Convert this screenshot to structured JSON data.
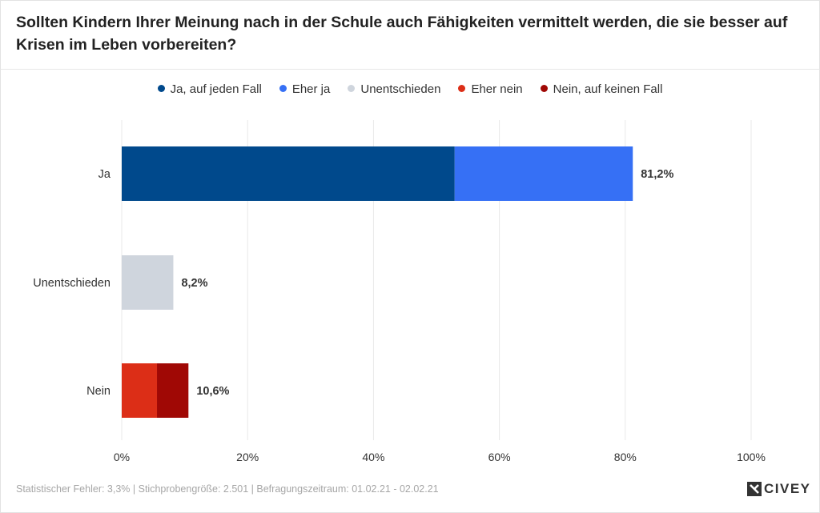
{
  "title": "Sollten Kindern Ihrer Meinung nach in der Schule auch Fähigkeiten vermittelt werden, die sie besser auf Krisen im Leben vorbereiten?",
  "footer": "Statistischer Fehler: 3,3% | Stichprobengröße: 2.501 | Befragungszeitraum: 01.02.21 - 02.02.21",
  "logo": {
    "text": "CIVEY",
    "icon": "civey-logo-icon"
  },
  "colors": {
    "ja_auf_jeden_fall": "#00498c",
    "eher_ja": "#3670f5",
    "unentschieden": "#cfd5dd",
    "eher_nein": "#dc2e17",
    "nein_auf_keinen_fall": "#a00805"
  },
  "chart_data": {
    "type": "bar",
    "orientation": "horizontal",
    "stacked": true,
    "categories": [
      "Ja",
      "Unentschieden",
      "Nein"
    ],
    "series": [
      {
        "name": "Ja, auf jeden Fall",
        "color": "#00498c",
        "values": [
          52.9,
          0,
          0
        ]
      },
      {
        "name": "Eher ja",
        "color": "#3670f5",
        "values": [
          28.3,
          0,
          0
        ]
      },
      {
        "name": "Unentschieden",
        "color": "#cfd5dd",
        "values": [
          0,
          8.2,
          0
        ]
      },
      {
        "name": "Eher nein",
        "color": "#dc2e17",
        "values": [
          0,
          0,
          5.6
        ]
      },
      {
        "name": "Nein, auf keinen Fall",
        "color": "#a00805",
        "values": [
          0,
          0,
          5.0
        ]
      }
    ],
    "totals": [
      "81,2%",
      "8,2%",
      "10,6%"
    ],
    "xlim": [
      0,
      100
    ],
    "xticks": [
      0,
      20,
      40,
      60,
      80,
      100
    ],
    "xtick_labels": [
      "0%",
      "20%",
      "40%",
      "60%",
      "80%",
      "100%"
    ],
    "grid": true,
    "legend_position": "top-center"
  }
}
